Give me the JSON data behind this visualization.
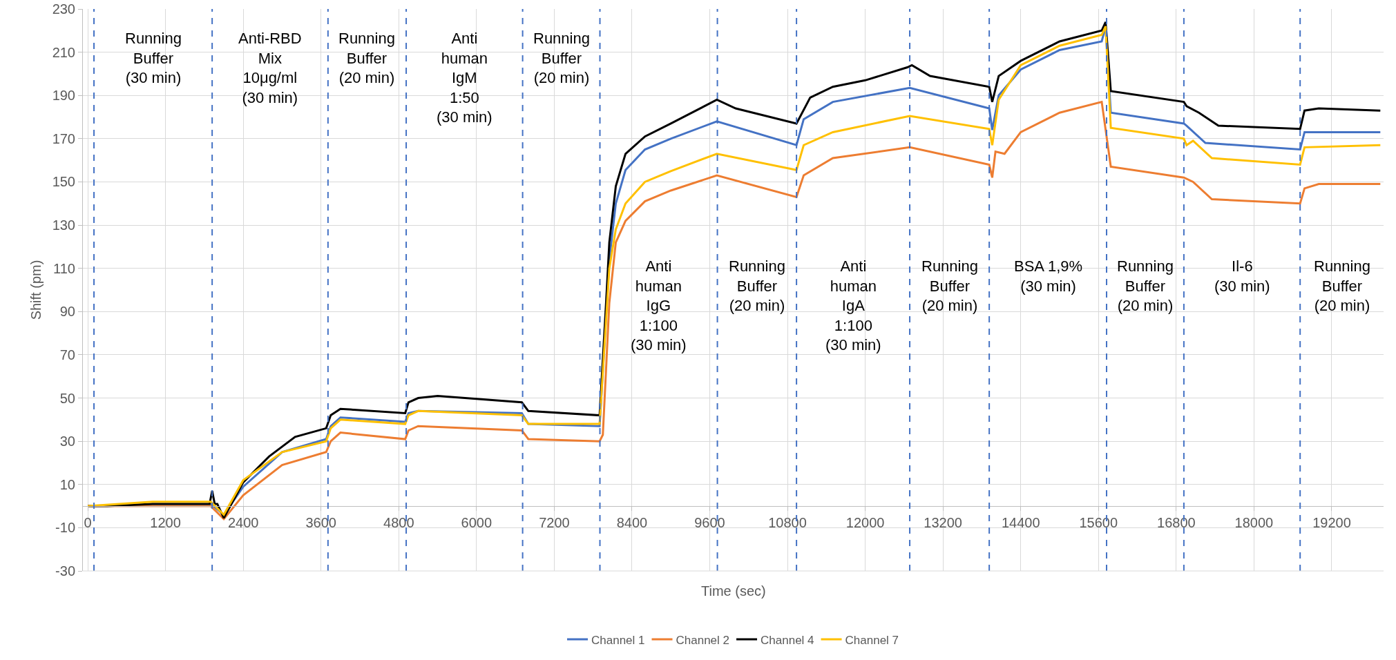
{
  "chart_data": {
    "type": "line",
    "xlabel": "Time (sec)",
    "ylabel": "Shift (pm)",
    "xlim": [
      -75,
      20000
    ],
    "xticks": [
      0,
      1200,
      2400,
      3600,
      4800,
      6000,
      7200,
      8400,
      9600,
      10800,
      12000,
      13200,
      14400,
      15600,
      16800,
      18000,
      19200
    ],
    "ylim": [
      -30,
      230
    ],
    "yticks": [
      -30,
      -10,
      10,
      30,
      50,
      70,
      90,
      110,
      130,
      150,
      170,
      190,
      210,
      230
    ],
    "grid": true,
    "legend": "bottom",
    "marker": "none",
    "line_style": "solid",
    "series": [
      {
        "name": "Channel 1",
        "color": "#4472c4",
        "x": [
          0,
          1000,
          1900,
          2100,
          2400,
          3000,
          3680,
          3750,
          3900,
          4900,
          4950,
          5100,
          6700,
          6800,
          7900,
          8050,
          8150,
          8300,
          8600,
          9000,
          9710,
          10939,
          11050,
          11500,
          12687,
          13914,
          13960,
          14060,
          14400,
          15000,
          15650,
          15710,
          15790,
          16918,
          16960,
          17250,
          18712,
          18780,
          19950
        ],
        "values": [
          0,
          1,
          1,
          -4,
          9,
          25,
          31,
          37,
          41,
          39,
          43,
          44,
          43,
          38,
          37,
          114,
          140,
          155.5,
          165,
          170,
          178,
          167,
          179,
          187,
          193.5,
          184,
          174,
          190,
          202,
          211,
          215,
          222,
          182,
          177,
          176,
          168,
          165,
          173,
          173
        ]
      },
      {
        "name": "Channel 2",
        "color": "#ed7d31",
        "x": [
          0,
          1000,
          1900,
          2100,
          2400,
          3000,
          3680,
          3750,
          3900,
          4900,
          4950,
          5100,
          6700,
          6800,
          7900,
          7950,
          8050,
          8150,
          8300,
          8600,
          9000,
          9710,
          10939,
          11050,
          11500,
          12687,
          13914,
          13960,
          14010,
          14150,
          14400,
          15000,
          15650,
          15790,
          16918,
          17060,
          17350,
          18712,
          18780,
          19000,
          19950
        ],
        "values": [
          0,
          0,
          0,
          -6,
          5,
          19,
          25,
          30,
          34,
          31,
          35,
          37,
          35,
          31,
          30,
          33,
          94,
          122,
          132,
          141,
          146,
          153,
          143,
          153,
          161,
          166,
          158,
          152,
          164,
          163,
          173,
          182,
          187,
          157,
          152,
          150,
          142,
          140,
          147,
          149,
          149
        ]
      },
      {
        "name": "Channel 4",
        "color": "#000000",
        "x": [
          0,
          300,
          1000,
          1880,
          1920,
          1960,
          2000,
          2100,
          2400,
          2800,
          3200,
          3680,
          3750,
          3900,
          4900,
          4950,
          5100,
          5400,
          6700,
          6800,
          7900,
          8000,
          8050,
          8150,
          8300,
          8600,
          9000,
          9710,
          10000,
          10939,
          11150,
          11500,
          12000,
          12650,
          12720,
          13000,
          13914,
          13960,
          14060,
          14400,
          15000,
          15650,
          15710,
          15790,
          16918,
          16960,
          17150,
          17450,
          18712,
          18780,
          19000,
          19950
        ],
        "values": [
          0,
          0,
          1,
          1,
          7,
          1,
          1,
          -5.5,
          11,
          23,
          32,
          36,
          42,
          45,
          43,
          48,
          50,
          51,
          48,
          44,
          42,
          94,
          122,
          148,
          163,
          171,
          177,
          188,
          184,
          177,
          189,
          194,
          197,
          203,
          204,
          199,
          194,
          187,
          199,
          206,
          215,
          220,
          224,
          192,
          187,
          185,
          182,
          176,
          174.5,
          183,
          184,
          183
        ]
      },
      {
        "name": "Channel 7",
        "color": "#ffc000",
        "x": [
          0,
          1000,
          1900,
          2100,
          2400,
          3000,
          3680,
          3750,
          3900,
          4900,
          4950,
          5100,
          6700,
          6800,
          7900,
          8050,
          8150,
          8300,
          8600,
          9000,
          9710,
          10939,
          11050,
          11500,
          12687,
          13914,
          13960,
          14060,
          14400,
          15000,
          15650,
          15710,
          15790,
          16918,
          16960,
          17060,
          17350,
          18712,
          18780,
          19950
        ],
        "values": [
          0,
          2,
          2,
          -4,
          12,
          25,
          30,
          36,
          40,
          38,
          42,
          44,
          42,
          38,
          38,
          110,
          128,
          140,
          150,
          155,
          163,
          155.5,
          167,
          173,
          180.5,
          174.5,
          167,
          188,
          204,
          213,
          218,
          222,
          175,
          170,
          167,
          169,
          161,
          158,
          166,
          167
        ]
      }
    ],
    "ref_lines": [
      {
        "axis": "x",
        "value": 96,
        "color": "#4472c4",
        "line_style": "dashed"
      },
      {
        "axis": "x",
        "value": 1920,
        "color": "#4472c4",
        "line_style": "dashed"
      },
      {
        "axis": "x",
        "value": 3708,
        "color": "#4472c4",
        "line_style": "dashed"
      },
      {
        "axis": "x",
        "value": 4915,
        "color": "#4472c4",
        "line_style": "dashed"
      },
      {
        "axis": "x",
        "value": 6712,
        "color": "#4472c4",
        "line_style": "dashed"
      },
      {
        "axis": "x",
        "value": 7905,
        "color": "#4472c4",
        "line_style": "dashed"
      },
      {
        "axis": "x",
        "value": 9718,
        "color": "#4472c4",
        "line_style": "dashed"
      },
      {
        "axis": "x",
        "value": 10939,
        "color": "#4472c4",
        "line_style": "dashed"
      },
      {
        "axis": "x",
        "value": 12687,
        "color": "#4472c4",
        "line_style": "dashed"
      },
      {
        "axis": "x",
        "value": 13914,
        "color": "#4472c4",
        "line_style": "dashed"
      },
      {
        "axis": "x",
        "value": 15725,
        "color": "#4472c4",
        "line_style": "dashed"
      },
      {
        "axis": "x",
        "value": 16918,
        "color": "#4472c4",
        "line_style": "dashed"
      },
      {
        "axis": "x",
        "value": 18712,
        "color": "#4472c4",
        "line_style": "dashed"
      }
    ],
    "annotations": [
      "Running\nBuffer\n(30 min)",
      "Anti-RBD\nMix\n10μg/ml\n(30 min)",
      "Running\nBuffer\n(20 min)",
      "Anti\nhuman\nIgM\n1:50\n(30 min)",
      "Running\nBuffer\n(20 min)",
      "Anti\nhuman\nIgG\n1:100\n(30 min)",
      "Running\nBuffer\n(20 min)",
      "Anti\nhuman\nIgA\n1:100\n(30 min)",
      "Running\nBuffer\n(20 min)",
      "BSA 1,9%\n(30 min)",
      "Running\nBuffer\n(20 min)",
      "Il-6\n(30 min)",
      "Running\nBuffer\n(20 min)"
    ]
  }
}
